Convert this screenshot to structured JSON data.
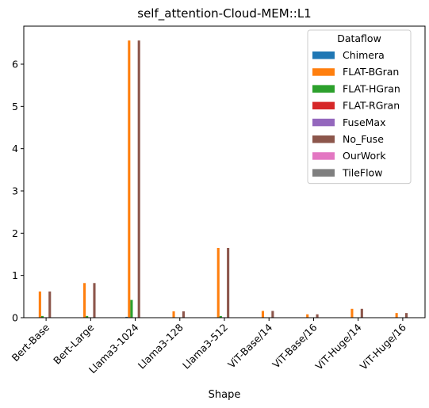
{
  "chart_data": {
    "type": "bar",
    "title": "self_attention-Cloud-MEM::L1",
    "xlabel": "Shape",
    "ylabel": "",
    "ylim": [
      0,
      6.9
    ],
    "yticks": [
      0,
      1,
      2,
      3,
      4,
      5,
      6
    ],
    "grid": false,
    "legend": {
      "title": "Dataflow",
      "position": "top-right"
    },
    "categories": [
      "Bert-Base",
      "Bert-Large",
      "Llama3-1024",
      "Llama3-128",
      "Llama3-512",
      "ViT-Base/14",
      "ViT-Base/16",
      "ViT-Huge/14",
      "ViT-Huge/16"
    ],
    "series": [
      {
        "name": "Chimera",
        "color": "#1f77b4",
        "values": [
          0.01,
          0.01,
          0.02,
          0.0,
          0.01,
          0.0,
          0.0,
          0.0,
          0.0
        ]
      },
      {
        "name": "FLAT-BGran",
        "color": "#ff7f0e",
        "values": [
          0.62,
          0.82,
          6.56,
          0.15,
          1.65,
          0.16,
          0.08,
          0.21,
          0.11
        ]
      },
      {
        "name": "FLAT-HGran",
        "color": "#2ca02c",
        "values": [
          0.04,
          0.04,
          0.42,
          0.01,
          0.04,
          0.01,
          0.0,
          0.01,
          0.0
        ]
      },
      {
        "name": "FLAT-RGran",
        "color": "#d62728",
        "values": [
          0.0,
          0.0,
          0.0,
          0.0,
          0.0,
          0.0,
          0.0,
          0.0,
          0.0
        ]
      },
      {
        "name": "FuseMax",
        "color": "#9467bd",
        "values": [
          0.0,
          0.0,
          0.0,
          0.0,
          0.0,
          0.0,
          0.0,
          0.0,
          0.0
        ]
      },
      {
        "name": "No_Fuse",
        "color": "#8c564b",
        "values": [
          0.62,
          0.82,
          6.56,
          0.15,
          1.65,
          0.16,
          0.08,
          0.21,
          0.11
        ]
      },
      {
        "name": "OurWork",
        "color": "#e377c2",
        "values": [
          0.0,
          0.0,
          0.0,
          0.0,
          0.0,
          0.0,
          0.0,
          0.0,
          0.0
        ]
      },
      {
        "name": "TileFlow",
        "color": "#7f7f7f",
        "values": [
          0.0,
          0.0,
          0.0,
          0.0,
          0.0,
          0.0,
          0.0,
          0.0,
          0.0
        ]
      }
    ]
  }
}
